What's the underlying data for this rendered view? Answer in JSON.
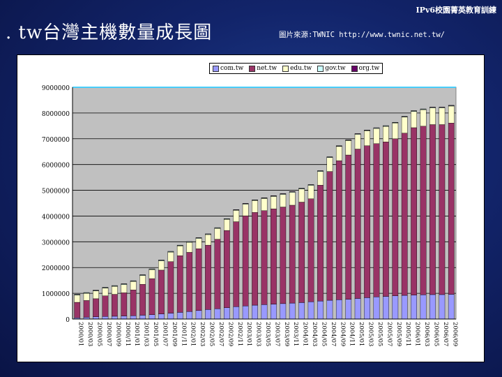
{
  "header": {
    "tag": "IPv6校園菁英教育訓練",
    "title": ". tw台灣主機數量成長圖",
    "source": "圖片來源:TWNIC  http://www.twnic.net.tw/"
  },
  "chart_data": {
    "type": "bar",
    "stacked": true,
    "ylim": [
      0,
      9000000
    ],
    "yticks": [
      "0",
      "1000000",
      "2000000",
      "3000000",
      "4000000",
      "5000000",
      "6000000",
      "7000000",
      "8000000",
      "9000000"
    ],
    "grid": true,
    "legend": "top",
    "categories": [
      "2000/01",
      "2000/03",
      "2000/05",
      "2000/07",
      "2000/09",
      "2000/11",
      "2001/01",
      "2001/03",
      "2001/05",
      "2001/07",
      "2001/09",
      "2001/11",
      "2002/01",
      "2002/03",
      "2002/05",
      "2002/07",
      "2002/09",
      "2002/11",
      "2003/01",
      "2003/03",
      "2003/05",
      "2003/07",
      "2003/09",
      "2003/11",
      "2004/01",
      "2004/03",
      "2004/05",
      "2004/07",
      "2004/09",
      "2004/11",
      "2005/01",
      "2005/03",
      "2005/05",
      "2005/07",
      "2005/09",
      "2005/11",
      "2006/01",
      "2006/03",
      "2006/05",
      "2006/07",
      "2006/09"
    ],
    "series": [
      {
        "name": "com.tw",
        "color": "#9999ff",
        "values": [
          50000,
          70000,
          90000,
          100000,
          110000,
          120000,
          130000,
          150000,
          170000,
          200000,
          230000,
          260000,
          290000,
          330000,
          370000,
          400000,
          440000,
          480000,
          510000,
          540000,
          560000,
          580000,
          600000,
          620000,
          640000,
          670000,
          700000,
          730000,
          750000,
          770000,
          800000,
          830000,
          860000,
          880000,
          900000,
          920000,
          930000,
          940000,
          950000,
          950000,
          960000
        ]
      },
      {
        "name": "net.tw",
        "color": "#993366",
        "values": [
          600000,
          650000,
          700000,
          800000,
          850000,
          900000,
          1000000,
          1200000,
          1400000,
          1700000,
          2000000,
          2200000,
          2300000,
          2400000,
          2500000,
          2700000,
          3000000,
          3300000,
          3500000,
          3600000,
          3650000,
          3700000,
          3750000,
          3800000,
          3900000,
          4000000,
          4500000,
          5000000,
          5400000,
          5600000,
          5800000,
          5900000,
          5950000,
          6000000,
          6100000,
          6300000,
          6500000,
          6550000,
          6600000,
          6600000,
          6650000
        ]
      },
      {
        "name": "edu.tw",
        "color": "#ffffcc",
        "values": [
          280000,
          280000,
          300000,
          300000,
          310000,
          320000,
          330000,
          340000,
          350000,
          360000,
          370000,
          380000,
          390000,
          400000,
          410000,
          420000,
          430000,
          440000,
          450000,
          460000,
          470000,
          480000,
          490000,
          500000,
          510000,
          520000,
          530000,
          540000,
          550000,
          560000,
          570000,
          580000,
          590000,
          600000,
          610000,
          620000,
          630000,
          640000,
          650000,
          650000,
          660000
        ]
      },
      {
        "name": "gov.tw",
        "color": "#ccffff",
        "values": [
          20000,
          20000,
          20000,
          20000,
          20000,
          20000,
          20000,
          20000,
          20000,
          20000,
          20000,
          20000,
          20000,
          20000,
          20000,
          20000,
          20000,
          20000,
          20000,
          20000,
          20000,
          20000,
          20000,
          20000,
          20000,
          20000,
          20000,
          20000,
          20000,
          20000,
          20000,
          20000,
          20000,
          20000,
          20000,
          20000,
          20000,
          20000,
          20000,
          20000,
          20000
        ]
      },
      {
        "name": "org.tw",
        "color": "#660066",
        "values": [
          10000,
          10000,
          10000,
          10000,
          10000,
          10000,
          10000,
          10000,
          10000,
          10000,
          10000,
          10000,
          10000,
          10000,
          10000,
          10000,
          10000,
          10000,
          10000,
          10000,
          10000,
          10000,
          10000,
          10000,
          10000,
          10000,
          10000,
          10000,
          10000,
          10000,
          10000,
          10000,
          10000,
          10000,
          10000,
          10000,
          10000,
          10000,
          10000,
          10000,
          10000
        ]
      }
    ]
  }
}
